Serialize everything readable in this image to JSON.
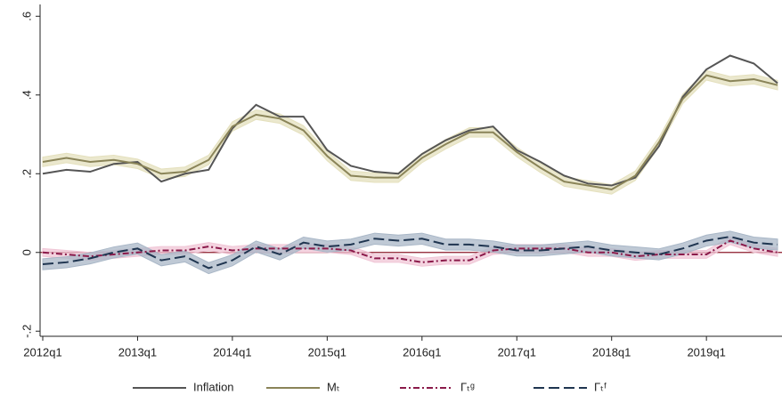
{
  "chart_data": {
    "type": "line",
    "categories": [
      "2012q1",
      null,
      null,
      null,
      "2013q1",
      null,
      null,
      null,
      "2014q1",
      null,
      null,
      null,
      "2015q1",
      null,
      null,
      null,
      "2016q1",
      null,
      null,
      null,
      "2017q1",
      null,
      null,
      null,
      "2018q1",
      null,
      null,
      null,
      "2019q1",
      null,
      null,
      null
    ],
    "series": [
      {
        "name": "Inflation",
        "color": "#555555",
        "style": "solid",
        "values": [
          0.2,
          0.21,
          0.205,
          0.225,
          0.23,
          0.18,
          0.2,
          0.21,
          0.315,
          0.375,
          0.345,
          0.345,
          0.26,
          0.22,
          0.205,
          0.2,
          0.25,
          0.285,
          0.31,
          0.32,
          0.26,
          0.23,
          0.195,
          0.175,
          0.17,
          0.19,
          0.27,
          0.395,
          0.465,
          0.5,
          0.48,
          0.43
        ]
      },
      {
        "name": "Mₜ",
        "color": "#8a8458",
        "band_color": "#e4e0bd",
        "style": "solid",
        "ci": 0.012,
        "values": [
          0.23,
          0.24,
          0.23,
          0.235,
          0.225,
          0.2,
          0.205,
          0.235,
          0.32,
          0.35,
          0.34,
          0.31,
          0.245,
          0.195,
          0.19,
          0.19,
          0.24,
          0.275,
          0.305,
          0.305,
          0.255,
          0.215,
          0.18,
          0.17,
          0.16,
          0.195,
          0.28,
          0.39,
          0.45,
          0.435,
          0.44,
          0.425
        ]
      },
      {
        "name": "Γₜᵍ",
        "color": "#8b1a4a",
        "band_color": "#f0c6d6",
        "style": "dashdot",
        "ci": 0.01,
        "values": [
          0,
          -0.005,
          -0.01,
          -0.005,
          0,
          0.005,
          0.005,
          0.015,
          0.005,
          0.01,
          0.01,
          0.01,
          0.01,
          0.005,
          -0.015,
          -0.015,
          -0.025,
          -0.02,
          -0.02,
          0.005,
          0.01,
          0.01,
          0.01,
          0,
          0,
          -0.01,
          -0.005,
          -0.005,
          -0.005,
          0.03,
          0.01,
          0
        ]
      },
      {
        "name": "Γₜᶠ",
        "color": "#1f3550",
        "band_color": "#a9b7c7",
        "style": "dash",
        "ci": 0.014,
        "values": [
          -0.03,
          -0.025,
          -0.015,
          0,
          0.01,
          -0.02,
          -0.01,
          -0.04,
          -0.02,
          0.015,
          -0.005,
          0.025,
          0.015,
          0.02,
          0.035,
          0.03,
          0.035,
          0.02,
          0.02,
          0.015,
          0.005,
          0.005,
          0.01,
          0.015,
          0.005,
          0,
          -0.005,
          0.01,
          0.03,
          0.04,
          0.025,
          0.02
        ]
      }
    ],
    "ylim": [
      -0.213,
      0.63
    ],
    "yticks": [
      {
        "value": -0.2,
        "label": "-.2"
      },
      0,
      {
        "value": 0.2,
        "label": ".2"
      },
      {
        "value": 0.4,
        "label": ".4"
      },
      {
        "value": 0.6,
        "label": ".6"
      }
    ],
    "hline": 0,
    "hline_color": "#8b1a2a",
    "legend": "bottom"
  }
}
